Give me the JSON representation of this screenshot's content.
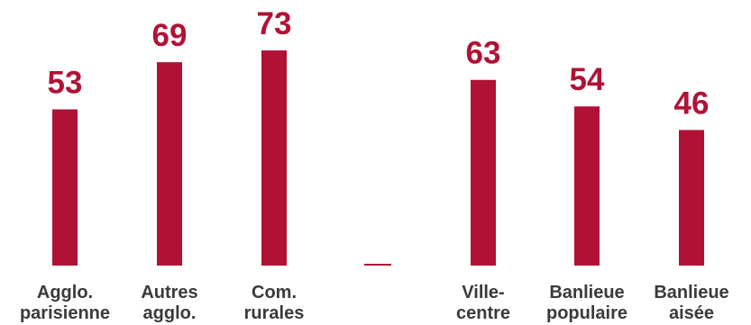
{
  "chart_data": {
    "type": "bar",
    "categories": [
      [
        "Agglo.",
        "parisienne"
      ],
      [
        "Autres",
        "agglo."
      ],
      [
        "Com.",
        "rurales"
      ],
      [
        "",
        ""
      ],
      [
        "Ville-",
        "centre"
      ],
      [
        "Banlieue",
        "populaire"
      ],
      [
        "Banlieue",
        "aisée"
      ]
    ],
    "values": [
      53,
      69,
      73,
      0,
      63,
      54,
      46
    ],
    "value_labels": [
      "53",
      "69",
      "73",
      "",
      "63",
      "54",
      "46"
    ],
    "title": "",
    "xlabel": "",
    "ylabel": "",
    "ylim": [
      0,
      73
    ],
    "grid": false,
    "legend": "none",
    "colors": {
      "bar": "#b01235",
      "value_label": "#b01235",
      "category_label": "#3a3a3a",
      "separator": "#b01235"
    }
  }
}
